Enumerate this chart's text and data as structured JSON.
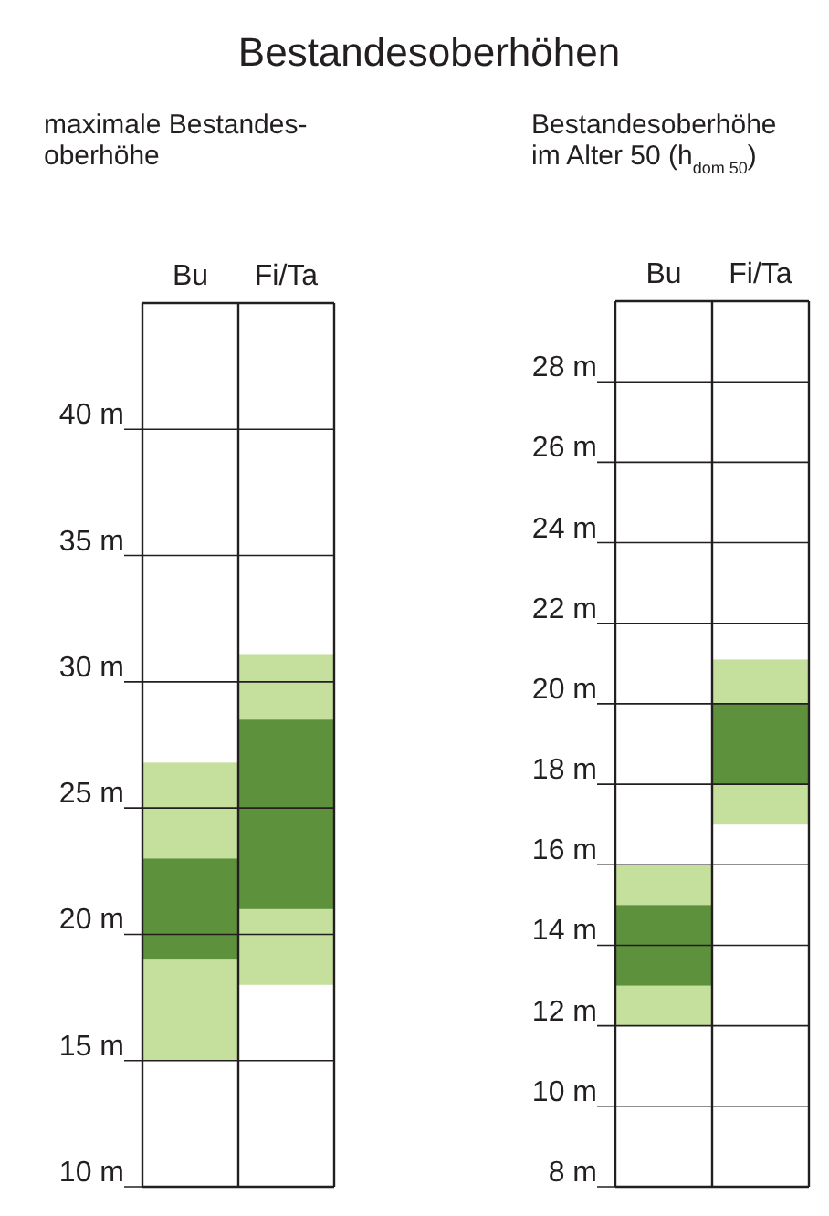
{
  "chart_data": [
    {
      "type": "bar",
      "title": "Bestandesoberhöhen",
      "subtitle": "maximale Bestandes-\noberhöhe",
      "categories": [
        "Bu",
        "Fi/Ta"
      ],
      "series": [
        {
          "color": "#c5df9d",
          "base": [
            15,
            18
          ],
          "values": [
            11.8,
            13.1
          ]
        },
        {
          "color": "#5e913c",
          "base": [
            19,
            21
          ],
          "values": [
            4,
            7.5
          ]
        }
      ],
      "ylim": [
        10,
        45
      ],
      "yticks": [
        {
          "value": 10,
          "label": "10 m"
        },
        {
          "value": 15,
          "label": "15 m"
        },
        {
          "value": 20,
          "label": "20 m"
        },
        {
          "value": 25,
          "label": "25 m"
        },
        {
          "value": 30,
          "label": "30 m"
        },
        {
          "value": 35,
          "label": "35 m"
        },
        {
          "value": 40,
          "label": "40 m"
        }
      ],
      "grid": "y"
    },
    {
      "type": "bar",
      "subtitle": "Bestandesoberhöhe\nim Alter 50 (h$_{dom 50}$)",
      "categories": [
        "Bu",
        "Fi/Ta"
      ],
      "series": [
        {
          "color": "#c5df9d",
          "base": [
            12,
            17
          ],
          "values": [
            4,
            4.1
          ]
        },
        {
          "color": "#5e913c",
          "base": [
            13,
            18
          ],
          "values": [
            2,
            2
          ]
        }
      ],
      "ylim": [
        8,
        30
      ],
      "yticks": [
        {
          "value": 8,
          "label": "8 m"
        },
        {
          "value": 10,
          "label": "10 m"
        },
        {
          "value": 12,
          "label": "12 m"
        },
        {
          "value": 14,
          "label": "14 m"
        },
        {
          "value": 16,
          "label": "16 m"
        },
        {
          "value": 18,
          "label": "18 m"
        },
        {
          "value": 20,
          "label": "20 m"
        },
        {
          "value": 22,
          "label": "22 m"
        },
        {
          "value": 24,
          "label": "24 m"
        },
        {
          "value": 26,
          "label": "26 m"
        },
        {
          "value": 28,
          "label": "28 m"
        }
      ],
      "grid": "y"
    }
  ]
}
